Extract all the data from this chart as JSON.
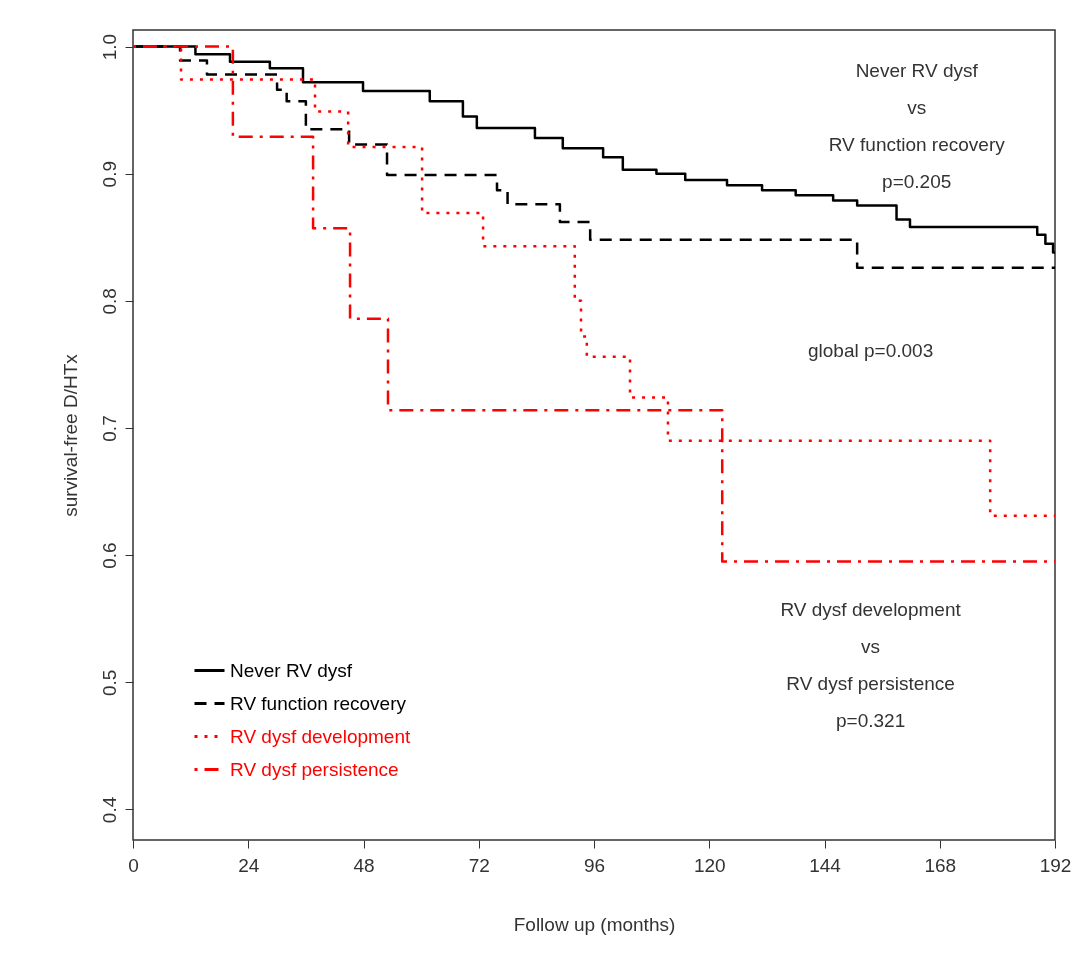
{
  "chart_data": {
    "type": "step",
    "xlabel": "Follow up (months)",
    "ylabel": "survival-free D/HTx",
    "xlim": [
      0,
      192
    ],
    "xticks": [
      0,
      24,
      48,
      72,
      96,
      120,
      144,
      168,
      192
    ],
    "ylim": [
      0.376,
      1.013
    ],
    "yticks": [
      0.4,
      0.5,
      0.6,
      0.7,
      0.8,
      0.9,
      {
        "value": 1,
        "label": "1.0"
      }
    ],
    "grid": false,
    "legend": "bottom left",
    "marker": "none",
    "series": [
      {
        "name": "Never RV dysf",
        "color": "#000000",
        "line_style": "solid",
        "x": [
          0,
          13,
          20.2,
          28.5,
          35.4,
          47.9,
          61.8,
          68.7,
          71.6,
          83.7,
          89.5,
          97.9,
          102,
          109,
          115,
          123.7,
          131,
          138,
          145.8,
          150.8,
          159,
          161.8,
          188.3,
          190,
          191.6,
          192
        ],
        "values": [
          1.0,
          0.994,
          0.988,
          0.983,
          0.972,
          0.965,
          0.957,
          0.945,
          0.936,
          0.928,
          0.92,
          0.913,
          0.903,
          0.9,
          0.895,
          0.891,
          0.887,
          0.883,
          0.879,
          0.875,
          0.864,
          0.858,
          0.852,
          0.845,
          0.838,
          0.838
        ]
      },
      {
        "name": "RV function recovery",
        "color": "#000000",
        "line_style": "dashed",
        "x": [
          0,
          9.8,
          15.4,
          30,
          32,
          36,
          45,
          52.9,
          75.8,
          78,
          88.9,
          95.2,
          150.8,
          192
        ],
        "values": [
          1.0,
          0.989,
          0.978,
          0.966,
          0.957,
          0.935,
          0.923,
          0.899,
          0.887,
          0.876,
          0.862,
          0.848,
          0.826,
          0.826
        ]
      },
      {
        "name": "RV dysf development",
        "color": "#ff0000",
        "line_style": "dotted",
        "x": [
          0,
          10,
          37.9,
          44.8,
          60.2,
          72.9,
          92,
          93.3,
          94.5,
          103.5,
          111.4,
          178.5,
          192
        ],
        "values": [
          1.0,
          0.974,
          0.949,
          0.921,
          0.869,
          0.843,
          0.8,
          0.772,
          0.756,
          0.724,
          0.69,
          0.631,
          0.631
        ]
      },
      {
        "name": "RV dysf persistence",
        "color": "#ff0000",
        "line_style": "dashdot",
        "x": [
          0,
          20.8,
          37.5,
          45.2,
          53.1,
          122.7,
          192
        ],
        "values": [
          1.0,
          0.929,
          0.857,
          0.786,
          0.714,
          0.595,
          0.595
        ]
      }
    ],
    "annotations": [
      "Never RV dysf\nvs\nRV function recovery\np=0.205",
      "global p=0.003",
      "RV dysf development\nvs\nRV dysf persistence\np=0.321"
    ]
  }
}
